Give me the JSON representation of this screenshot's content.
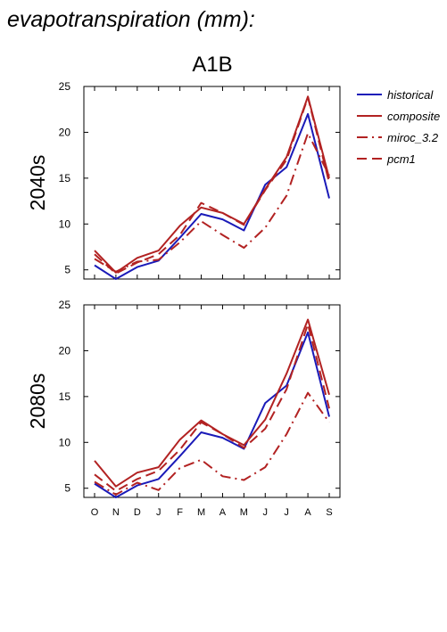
{
  "header": {
    "title": "evapotranspiration (mm):",
    "scenario": "A1B"
  },
  "legend": {
    "position": "right",
    "entries": [
      {
        "label": "historical",
        "color": "#1a1ab8",
        "dash": "solid"
      },
      {
        "label": "composite",
        "color": "#b22222",
        "dash": "solid"
      },
      {
        "label": "miroc_3.2",
        "color": "#b22222",
        "dash": "dashdot"
      },
      {
        "label": "pcm1",
        "color": "#b22222",
        "dash": "dashed"
      }
    ]
  },
  "chart_data": [
    {
      "type": "line",
      "ylabel": "2040s",
      "xlabel": "",
      "categories": [
        "O",
        "N",
        "D",
        "J",
        "F",
        "M",
        "A",
        "M",
        "J",
        "J",
        "A",
        "S"
      ],
      "ylim": [
        4,
        25
      ],
      "yticks": [
        5,
        10,
        15,
        20,
        25
      ],
      "series": [
        {
          "name": "historical",
          "color": "#1a1ab8",
          "dash": "solid",
          "values": [
            5.5,
            4.0,
            5.3,
            6.0,
            8.5,
            11.1,
            10.5,
            9.3,
            14.3,
            16.2,
            22.0,
            12.8
          ]
        },
        {
          "name": "composite",
          "color": "#b22222",
          "dash": "solid",
          "values": [
            7.1,
            4.7,
            6.3,
            7.1,
            9.8,
            11.8,
            11.2,
            10.0,
            13.8,
            17.3,
            23.9,
            15.0
          ]
        },
        {
          "name": "miroc_3.2",
          "color": "#b22222",
          "dash": "dashdot",
          "values": [
            6.2,
            4.8,
            5.9,
            6.1,
            8.0,
            10.3,
            8.8,
            7.4,
            9.6,
            13.1,
            19.9,
            15.3
          ]
        },
        {
          "name": "pcm1",
          "color": "#b22222",
          "dash": "dashed",
          "values": [
            6.7,
            4.6,
            5.8,
            6.7,
            8.8,
            12.3,
            11.2,
            9.9,
            13.7,
            17.0,
            23.8,
            14.5
          ]
        }
      ]
    },
    {
      "type": "line",
      "ylabel": "2080s",
      "xlabel": "",
      "categories": [
        "O",
        "N",
        "D",
        "J",
        "F",
        "M",
        "A",
        "M",
        "J",
        "J",
        "A",
        "S"
      ],
      "ylim": [
        4,
        25
      ],
      "yticks": [
        5,
        10,
        15,
        20,
        25
      ],
      "series": [
        {
          "name": "historical",
          "color": "#1a1ab8",
          "dash": "solid",
          "values": [
            5.5,
            4.0,
            5.3,
            6.0,
            8.5,
            11.1,
            10.5,
            9.3,
            14.3,
            16.2,
            22.0,
            12.8
          ]
        },
        {
          "name": "composite",
          "color": "#b22222",
          "dash": "solid",
          "values": [
            8.0,
            5.2,
            6.7,
            7.3,
            10.3,
            12.4,
            10.9,
            9.7,
            12.5,
            17.5,
            23.4,
            15.2
          ]
        },
        {
          "name": "miroc_3.2",
          "color": "#b22222",
          "dash": "dashdot",
          "values": [
            5.7,
            4.3,
            5.6,
            4.8,
            7.2,
            8.1,
            6.3,
            5.9,
            7.3,
            10.9,
            15.4,
            12.2
          ]
        },
        {
          "name": "pcm1",
          "color": "#b22222",
          "dash": "dashed",
          "values": [
            6.5,
            4.7,
            6.0,
            6.9,
            9.2,
            12.2,
            10.9,
            9.4,
            11.5,
            15.8,
            22.9,
            13.7
          ]
        }
      ]
    }
  ]
}
